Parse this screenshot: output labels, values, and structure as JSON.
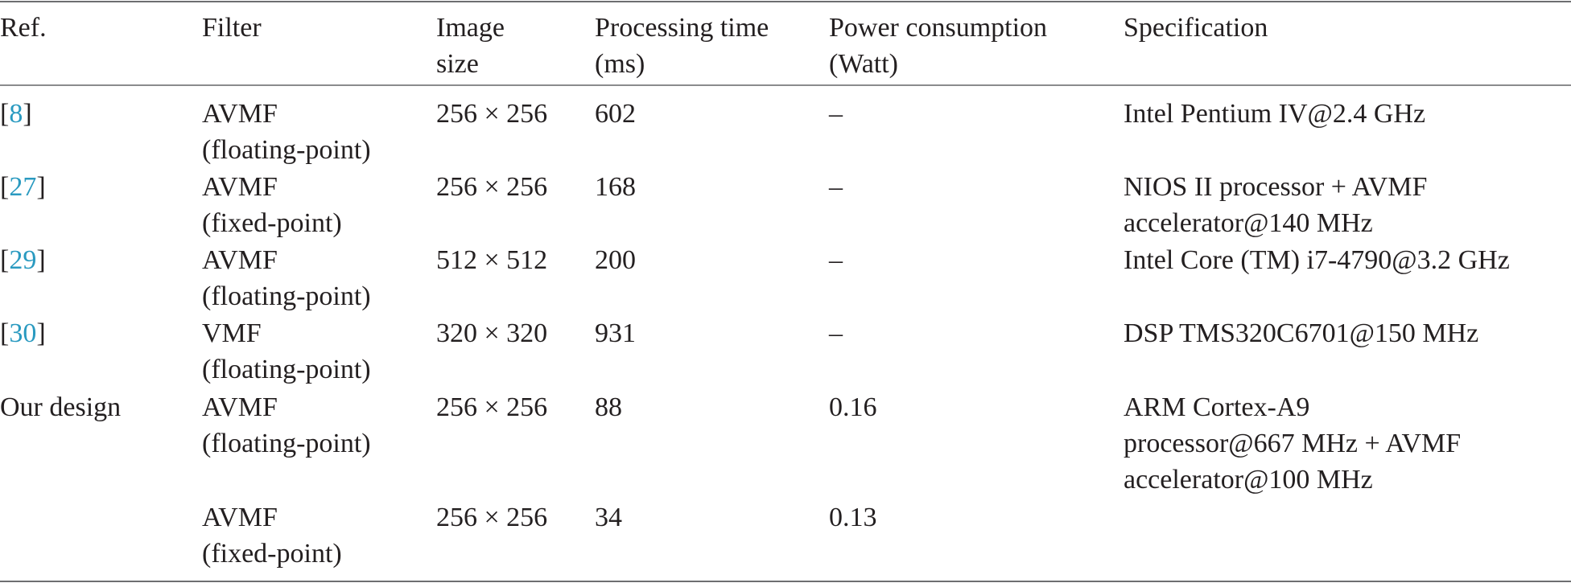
{
  "table": {
    "headers": {
      "ref": "Ref.",
      "filter": "Filter",
      "image_size_line1": "Image",
      "image_size_line2": "size",
      "processing_time_line1": "Processing time",
      "processing_time_line2": "(ms)",
      "power_line1": "Power consumption",
      "power_line2": "(Watt)",
      "specification": "Specification"
    },
    "rows": [
      {
        "ref_num": "8",
        "filter_line1": "AVMF",
        "filter_line2": "(floating-point)",
        "image_size": "256 × 256",
        "processing_time": "602",
        "power": "–",
        "spec_line1": "Intel Pentium IV@2.4 GHz",
        "spec_line2": "",
        "spec_line3": ""
      },
      {
        "ref_num": "27",
        "filter_line1": "AVMF",
        "filter_line2": "(fixed-point)",
        "image_size": "256 × 256",
        "processing_time": "168",
        "power": "–",
        "spec_line1": "NIOS II processor + AVMF",
        "spec_line2": "accelerator@140 MHz",
        "spec_line3": ""
      },
      {
        "ref_num": "29",
        "filter_line1": "AVMF",
        "filter_line2": "(floating-point)",
        "image_size": "512 × 512",
        "processing_time": "200",
        "power": "–",
        "spec_line1": "Intel Core (TM) i7-4790@3.2 GHz",
        "spec_line2": "",
        "spec_line3": ""
      },
      {
        "ref_num": "30",
        "filter_line1": "VMF",
        "filter_line2": "(floating-point)",
        "image_size": "320 × 320",
        "processing_time": "931",
        "power": "–",
        "spec_line1": "DSP TMS320C6701@150 MHz",
        "spec_line2": "",
        "spec_line3": ""
      },
      {
        "ref_text": "Our design",
        "filter_line1": "AVMF",
        "filter_line2": "(floating-point)",
        "image_size": "256 × 256",
        "processing_time": "88",
        "power": "0.16",
        "spec_line1": "ARM Cortex-A9",
        "spec_line2": "processor@667 MHz + AVMF",
        "spec_line3": "accelerator@100 MHz"
      },
      {
        "ref_text": "",
        "filter_line1": "AVMF",
        "filter_line2": "(fixed-point)",
        "image_size": "256 × 256",
        "processing_time": "34",
        "power": "0.13",
        "spec_line1": "",
        "spec_line2": "",
        "spec_line3": ""
      }
    ]
  },
  "colors": {
    "text": "#231f20",
    "reference_link": "#2a9ac0",
    "rule": "#6d6e70"
  }
}
